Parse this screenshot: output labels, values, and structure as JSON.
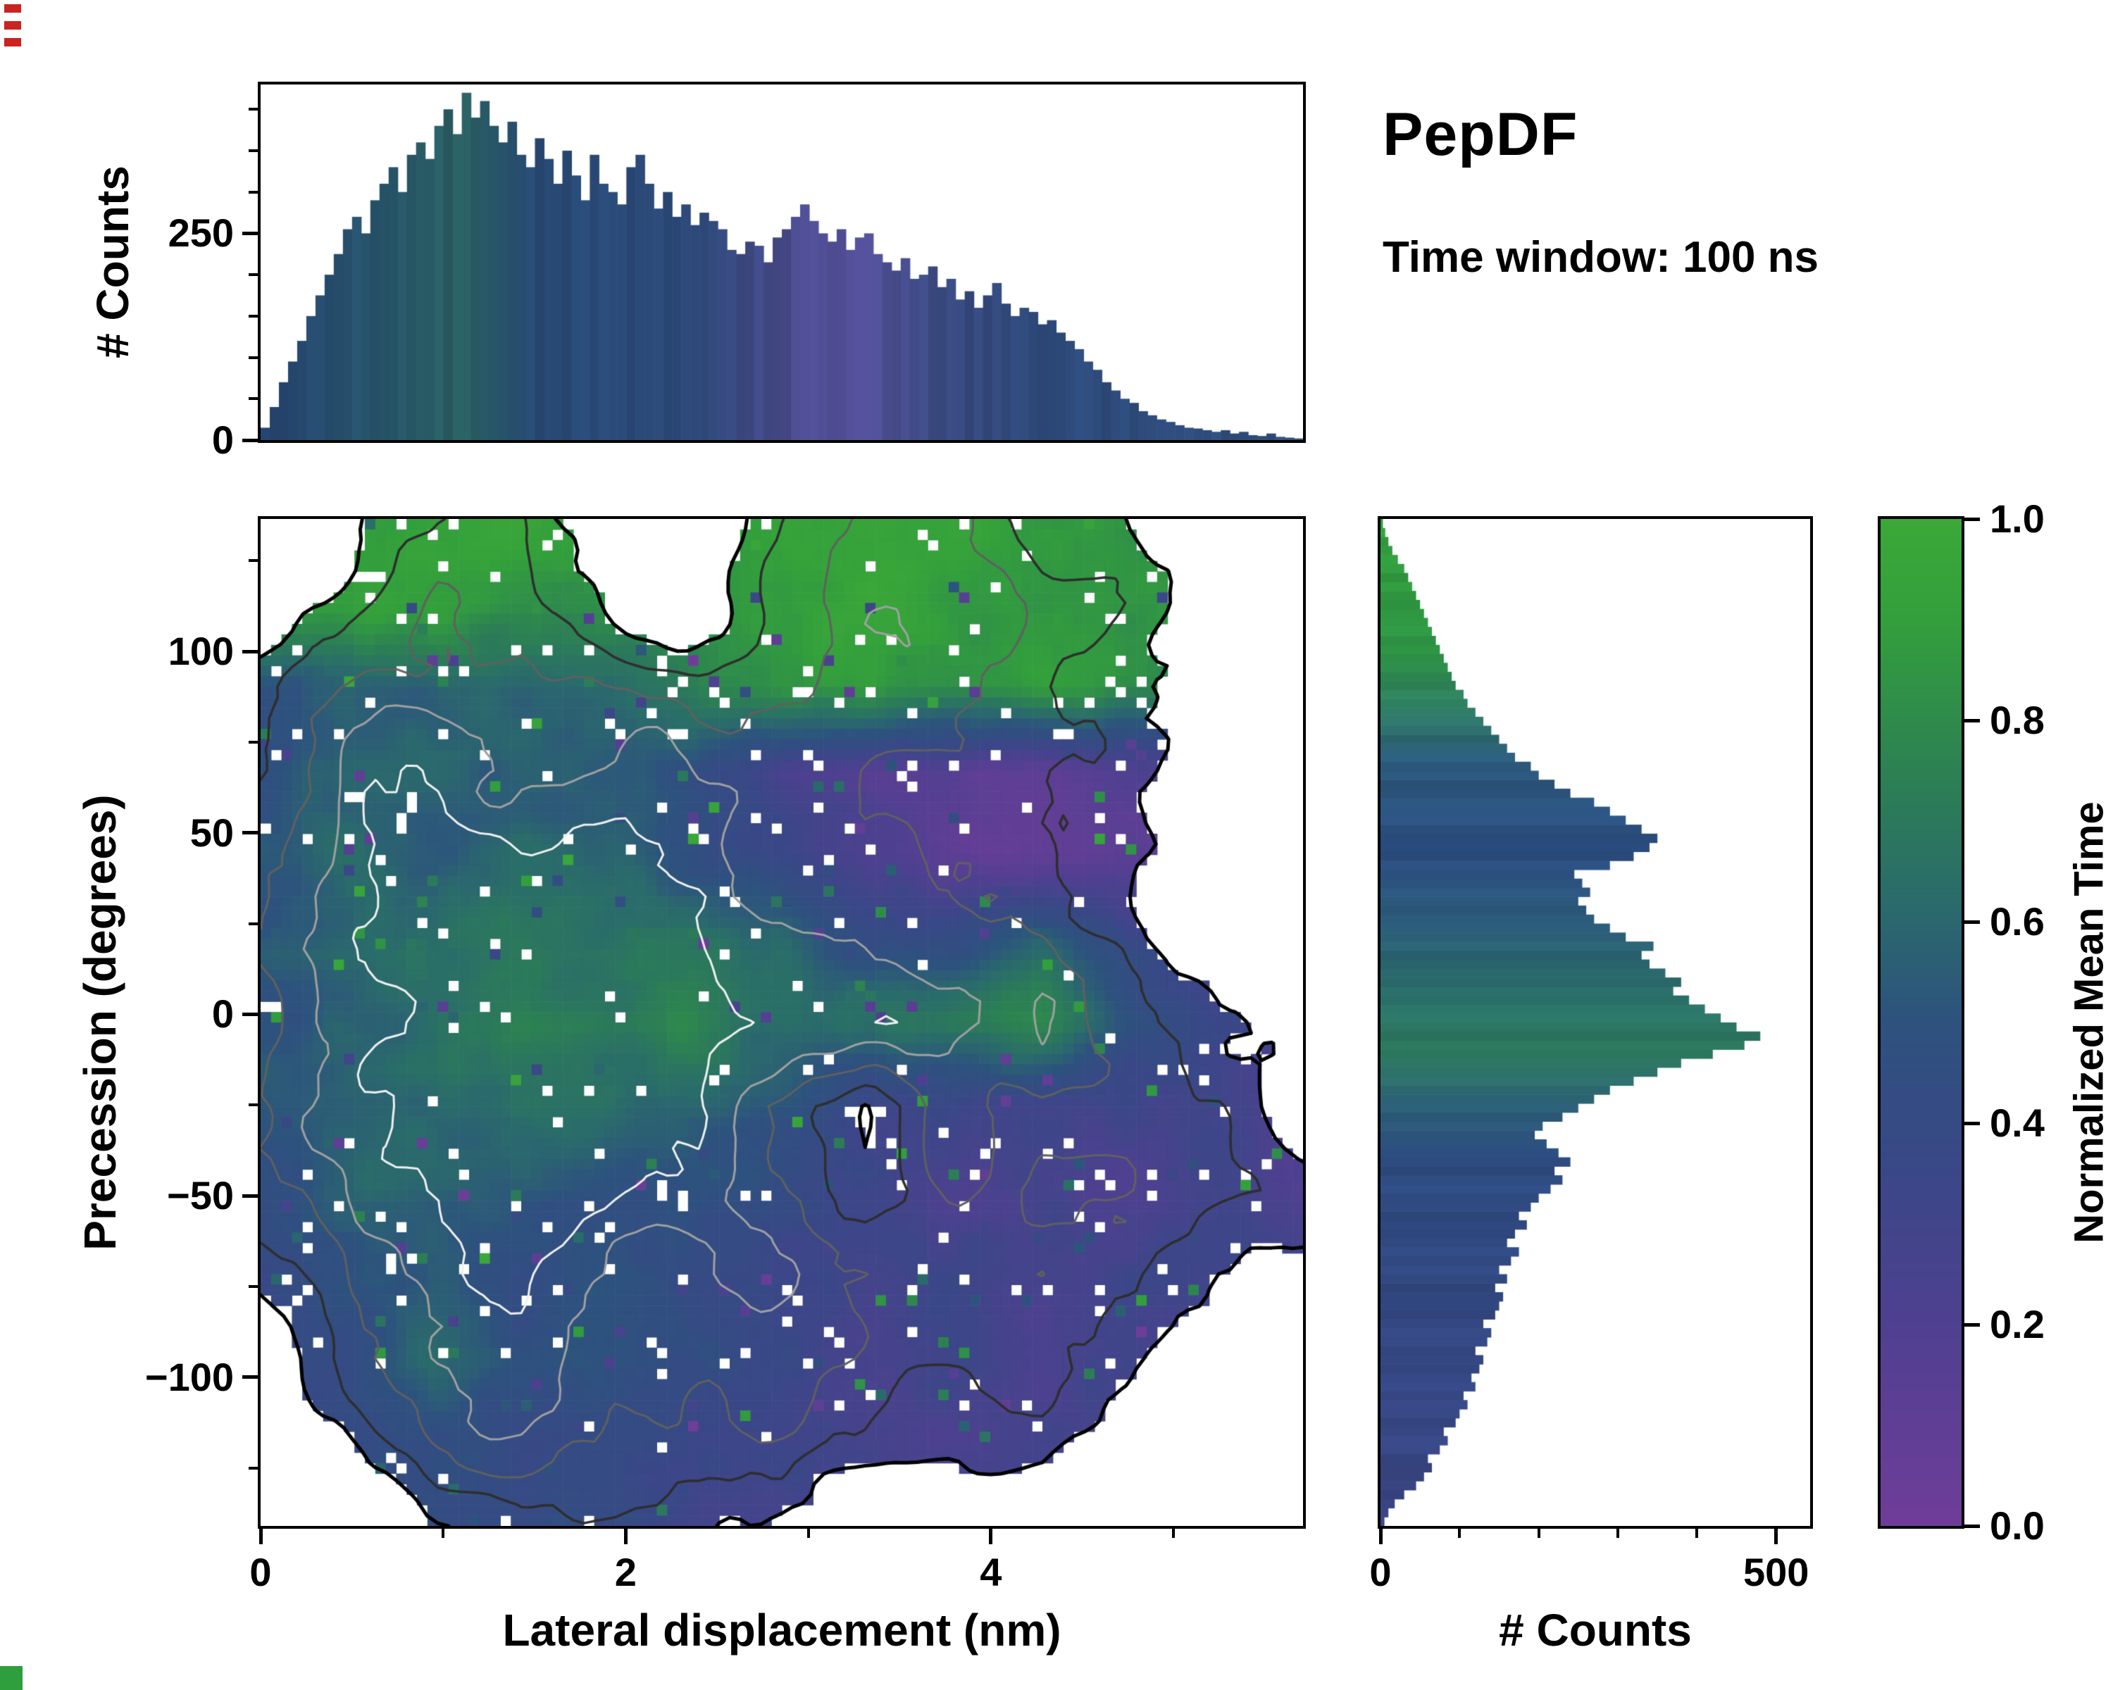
{
  "header": {
    "title": "PepDF",
    "subtitle": "Time window: 100 ns"
  },
  "colors": {
    "figure_bg": "#ffffff",
    "axis": "#000000",
    "artifact_red": "#cc2222",
    "artifact_green": "#2f9e3d"
  },
  "chart_data": [
    {
      "id": "top_histogram",
      "type": "bar",
      "title": "",
      "xlabel": "",
      "ylabel": "# Counts",
      "xlim": [
        0,
        5.71
      ],
      "ylim": [
        0,
        430
      ],
      "yticks": [
        {
          "v": 250,
          "l": "250"
        },
        {
          "v": 0,
          "l": "0"
        }
      ],
      "minor_yticks": [
        50,
        100,
        150,
        200,
        300,
        350,
        400
      ],
      "values": [
        15,
        40,
        70,
        95,
        120,
        150,
        175,
        200,
        225,
        255,
        270,
        250,
        290,
        310,
        330,
        300,
        345,
        360,
        340,
        380,
        400,
        370,
        420,
        390,
        410,
        380,
        360,
        385,
        345,
        330,
        365,
        340,
        310,
        350,
        320,
        290,
        345,
        310,
        300,
        285,
        330,
        345,
        310,
        280,
        300,
        270,
        285,
        260,
        275,
        265,
        255,
        230,
        225,
        240,
        235,
        215,
        245,
        255,
        270,
        285,
        265,
        250,
        240,
        255,
        230,
        245,
        250,
        225,
        215,
        205,
        220,
        195,
        200,
        210,
        185,
        195,
        170,
        180,
        160,
        175,
        190,
        165,
        150,
        160,
        155,
        140,
        145,
        130,
        120,
        110,
        95,
        85,
        70,
        60,
        50,
        45,
        35,
        30,
        25,
        22,
        18,
        15,
        14,
        12,
        10,
        12,
        8,
        10,
        6,
        5,
        8,
        4,
        3,
        2
      ],
      "color_stops": [
        [
          0,
          "#274472"
        ],
        [
          0.7,
          "#27566b"
        ],
        [
          1.1,
          "#2a5f60"
        ],
        [
          1.5,
          "#274a74"
        ],
        [
          2.4,
          "#2c4878"
        ],
        [
          2.9,
          "#4a4a8c"
        ],
        [
          3.3,
          "#55519b"
        ],
        [
          3.7,
          "#39497f"
        ],
        [
          4.3,
          "#2d4a7a"
        ],
        [
          5.71,
          "#2f4d7c"
        ]
      ]
    },
    {
      "id": "main_heatmap",
      "type": "heatmap",
      "xlabel": "Lateral displacement (nm)",
      "ylabel": "Precession (degrees)",
      "value_label": "Normalized Mean Time",
      "xlim": [
        0,
        5.71
      ],
      "ylim": [
        -141,
        136.5
      ],
      "xticks": [
        {
          "v": 0,
          "l": "0"
        },
        {
          "v": 2,
          "l": "2"
        },
        {
          "v": 4,
          "l": "4"
        }
      ],
      "minor_xticks": [
        1,
        3,
        5
      ],
      "yticks": [
        {
          "v": 100,
          "l": "100"
        },
        {
          "v": 50,
          "l": "50"
        },
        {
          "v": 0,
          "l": "0"
        },
        {
          "v": -50,
          "l": "−50"
        },
        {
          "v": -100,
          "l": "−100"
        }
      ],
      "minor_yticks": [
        125,
        75,
        25,
        -25,
        -75,
        -125
      ],
      "contour_levels": [
        0.2,
        0.36,
        0.5,
        0.64,
        0.78
      ],
      "contour_colors": [
        "#000000",
        "#2e2e2e",
        "#606060",
        "#a0a0a0",
        "#f0f0f0"
      ],
      "mean_time_grid": [
        [
          0.9,
          0.9,
          0.88,
          0.9,
          0.85,
          0.9,
          0.93,
          0.95,
          0.95,
          0.92,
          0.9,
          0.9,
          0.9
        ],
        [
          0.85,
          0.88,
          0.9,
          0.85,
          0.8,
          0.85,
          0.9,
          0.93,
          0.92,
          0.9,
          0.85,
          0.85,
          0.85
        ],
        [
          0.5,
          0.55,
          0.6,
          0.62,
          0.6,
          0.7,
          0.85,
          0.9,
          0.88,
          0.85,
          0.8,
          0.8,
          0.8
        ],
        [
          0.5,
          0.55,
          0.52,
          0.55,
          0.5,
          0.45,
          0.3,
          0.15,
          0.1,
          0.1,
          0.15,
          0.2,
          0.2
        ],
        [
          0.55,
          0.6,
          0.55,
          0.6,
          0.55,
          0.5,
          0.35,
          0.15,
          0.1,
          0.1,
          0.1,
          0.15,
          0.15
        ],
        [
          0.5,
          0.55,
          0.6,
          0.65,
          0.6,
          0.65,
          0.6,
          0.5,
          0.45,
          0.55,
          0.3,
          0.3,
          0.3
        ],
        [
          0.55,
          0.6,
          0.65,
          0.7,
          0.75,
          0.7,
          0.65,
          0.6,
          0.7,
          0.8,
          0.5,
          0.35,
          0.3
        ],
        [
          0.5,
          0.6,
          0.7,
          0.65,
          0.6,
          0.55,
          0.5,
          0.4,
          0.3,
          0.3,
          0.3,
          0.25,
          0.25
        ],
        [
          0.45,
          0.55,
          0.6,
          0.55,
          0.5,
          0.45,
          0.35,
          0.3,
          0.25,
          0.25,
          0.25,
          0.25,
          0.25
        ],
        [
          0.4,
          0.45,
          0.5,
          0.45,
          0.42,
          0.4,
          0.35,
          0.3,
          0.3,
          0.3,
          0.3,
          0.3,
          0.3
        ],
        [
          0.4,
          0.45,
          0.55,
          0.5,
          0.45,
          0.4,
          0.35,
          0.3,
          0.3,
          0.3,
          0.3,
          0.3,
          0.3
        ],
        [
          0.35,
          0.4,
          0.45,
          0.42,
          0.4,
          0.35,
          0.3,
          0.3,
          0.3,
          0.3,
          0.3,
          0.3,
          0.3
        ],
        [
          0.35,
          0.35,
          0.4,
          0.4,
          0.35,
          0.35,
          0.3,
          0.3,
          0.3,
          0.3,
          0.3,
          0.3,
          0.3
        ]
      ],
      "density_grid": [
        [
          0,
          0,
          0.28,
          0.32,
          0,
          0,
          0.42,
          0.5,
          0.5,
          0.3,
          0.22,
          0,
          0
        ],
        [
          0,
          0.3,
          0.5,
          0.48,
          0.2,
          0.1,
          0.5,
          0.6,
          0.58,
          0.45,
          0.3,
          0,
          0
        ],
        [
          0.3,
          0.5,
          0.6,
          0.6,
          0.5,
          0.45,
          0.55,
          0.6,
          0.5,
          0.35,
          0.1,
          0,
          0
        ],
        [
          0.4,
          0.6,
          0.7,
          0.7,
          0.65,
          0.6,
          0.6,
          0.55,
          0.5,
          0.4,
          0.25,
          0,
          0
        ],
        [
          0.5,
          0.7,
          0.8,
          0.8,
          0.75,
          0.7,
          0.65,
          0.6,
          0.55,
          0.45,
          0.28,
          0,
          0
        ],
        [
          0.5,
          0.75,
          0.85,
          0.9,
          0.85,
          0.8,
          0.75,
          0.65,
          0.6,
          0.5,
          0.3,
          0,
          0
        ],
        [
          0.5,
          0.75,
          0.9,
          0.95,
          0.95,
          0.9,
          0.8,
          0.7,
          0.6,
          0.5,
          0.35,
          0.1,
          0
        ],
        [
          0.45,
          0.7,
          0.85,
          0.9,
          0.9,
          0.8,
          0.45,
          0.12,
          0.5,
          0.45,
          0.42,
          0.3,
          0
        ],
        [
          0.4,
          0.6,
          0.8,
          0.85,
          0.8,
          0.7,
          0.5,
          0.15,
          0.5,
          0.5,
          0.45,
          0.35,
          0.3
        ],
        [
          0.3,
          0.5,
          0.7,
          0.75,
          0.7,
          0.65,
          0.6,
          0.55,
          0.5,
          0.45,
          0.35,
          0.1,
          0
        ],
        [
          0,
          0.4,
          0.6,
          0.65,
          0.6,
          0.6,
          0.55,
          0.5,
          0.45,
          0.4,
          0.3,
          0,
          0
        ],
        [
          0,
          0.1,
          0.45,
          0.55,
          0.5,
          0.5,
          0.45,
          0.4,
          0.35,
          0.3,
          0.1,
          0,
          0
        ],
        [
          0,
          0,
          0.22,
          0.3,
          0.28,
          0.25,
          0.22,
          0,
          0,
          0,
          0,
          0,
          0
        ]
      ]
    },
    {
      "id": "right_histogram",
      "type": "bar",
      "orientation": "horizontal",
      "xlabel": "# Counts",
      "ylabel": "",
      "xlim": [
        0,
        543
      ],
      "ylim": [
        -141,
        136.5
      ],
      "xticks": [
        {
          "v": 0,
          "l": "0"
        },
        {
          "v": 500,
          "l": "500"
        }
      ],
      "minor_xticks": [
        100,
        200,
        300,
        400
      ],
      "values": [
        5,
        10,
        18,
        30,
        45,
        55,
        65,
        60,
        75,
        85,
        80,
        95,
        100,
        110,
        105,
        120,
        115,
        125,
        130,
        120,
        135,
        140,
        130,
        145,
        150,
        155,
        145,
        160,
        150,
        165,
        175,
        160,
        170,
        185,
        175,
        190,
        200,
        215,
        230,
        220,
        240,
        225,
        210,
        195,
        205,
        230,
        250,
        270,
        290,
        320,
        350,
        380,
        420,
        460,
        480,
        450,
        430,
        410,
        390,
        370,
        380,
        360,
        340,
        330,
        345,
        310,
        290,
        270,
        260,
        250,
        265,
        255,
        245,
        290,
        320,
        340,
        350,
        330,
        310,
        290,
        270,
        240,
        220,
        200,
        190,
        170,
        160,
        150,
        140,
        130,
        120,
        110,
        105,
        95,
        90,
        85,
        80,
        75,
        70,
        65,
        60,
        55,
        50,
        45,
        40,
        35,
        30,
        22,
        15,
        10,
        6,
        3
      ],
      "color_stops": [
        [
          -141,
          "#3a4584"
        ],
        [
          -90,
          "#334781"
        ],
        [
          -40,
          "#2d4b80"
        ],
        [
          -25,
          "#2b5f75"
        ],
        [
          -10,
          "#2d7a5e"
        ],
        [
          5,
          "#2a6e68"
        ],
        [
          25,
          "#2b5a78"
        ],
        [
          45,
          "#2b4c80"
        ],
        [
          70,
          "#2c5b7d"
        ],
        [
          85,
          "#2f7e62"
        ],
        [
          100,
          "#2f9746"
        ],
        [
          136.5,
          "#32a03c"
        ]
      ]
    },
    {
      "id": "colorbar",
      "type": "colorbar",
      "label": "Normalized Mean Time",
      "lim": [
        0,
        1
      ],
      "ticks": [
        {
          "v": 1.0,
          "l": "1.0"
        },
        {
          "v": 0.8,
          "l": "0.8"
        },
        {
          "v": 0.6,
          "l": "0.6"
        },
        {
          "v": 0.4,
          "l": "0.4"
        },
        {
          "v": 0.2,
          "l": "0.2"
        },
        {
          "v": 0.0,
          "l": "0.0"
        }
      ],
      "colormap_stops": [
        [
          0,
          "#6f3d99"
        ],
        [
          0.2,
          "#4f4090"
        ],
        [
          0.35,
          "#3a4787"
        ],
        [
          0.5,
          "#2d527e"
        ],
        [
          0.62,
          "#2a6b6b"
        ],
        [
          0.75,
          "#2c8153"
        ],
        [
          0.9,
          "#339f3c"
        ],
        [
          1,
          "#3ba838"
        ]
      ]
    }
  ]
}
